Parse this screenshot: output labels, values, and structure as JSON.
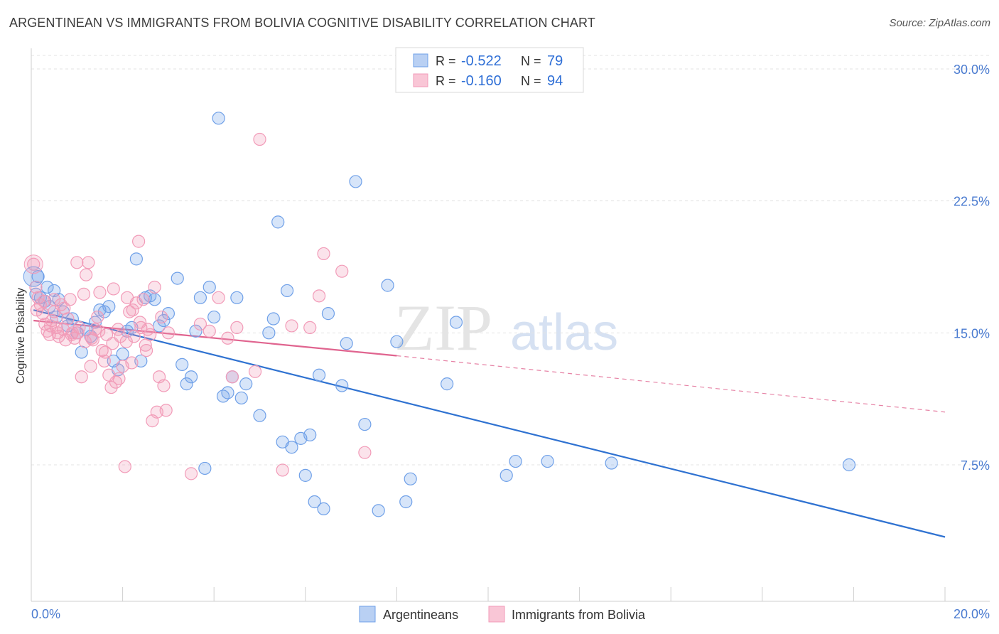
{
  "title": "ARGENTINEAN VS IMMIGRANTS FROM BOLIVIA COGNITIVE DISABILITY CORRELATION CHART",
  "source": "Source: ZipAtlas.com",
  "watermark": {
    "zip": "ZIP",
    "atlas": "atlas"
  },
  "chart_data": {
    "type": "scatter",
    "title": "ARGENTINEAN VS IMMIGRANTS FROM BOLIVIA COGNITIVE DISABILITY CORRELATION CHART",
    "ylabel": "Cognitive Disability",
    "xlabel": "",
    "xlim": [
      0,
      20
    ],
    "ylim": [
      0,
      30.9
    ],
    "x_ticks_labels": [
      "0.0%",
      "20.0%"
    ],
    "y_ticks": [
      7.5,
      15.0,
      22.5,
      30.0
    ],
    "y_ticks_labels": [
      "7.5%",
      "15.0%",
      "22.5%",
      "30.0%"
    ],
    "grid": true,
    "legend": {
      "placement": "top-center",
      "entries": [
        {
          "r_label": "R =",
          "r_value": "-0.522",
          "n_label": "N =",
          "n_value": "79"
        },
        {
          "r_label": "R =",
          "r_value": "-0.160",
          "n_label": "N =",
          "n_value": "94"
        }
      ]
    },
    "series": [
      {
        "name": "Argentineans",
        "color": "#6fa0e8",
        "trend": {
          "x": [
            0.05,
            20.0
          ],
          "y": [
            16.3,
            3.4
          ],
          "color": "#2f72d1"
        },
        "points": [
          [
            0.1,
            17.2
          ],
          [
            0.2,
            17.0
          ],
          [
            0.3,
            16.8
          ],
          [
            0.4,
            16.5
          ],
          [
            0.5,
            17.4
          ],
          [
            0.6,
            16.9
          ],
          [
            0.7,
            16.2
          ],
          [
            0.8,
            15.4
          ],
          [
            0.9,
            15.8
          ],
          [
            1.0,
            15.0
          ],
          [
            1.1,
            13.9
          ],
          [
            1.2,
            15.2
          ],
          [
            1.3,
            14.8
          ],
          [
            1.5,
            16.3
          ],
          [
            1.6,
            16.2
          ],
          [
            1.7,
            16.5
          ],
          [
            1.8,
            13.4
          ],
          [
            1.9,
            12.9
          ],
          [
            2.0,
            13.8
          ],
          [
            2.1,
            15.1
          ],
          [
            2.2,
            15.3
          ],
          [
            2.3,
            19.2
          ],
          [
            2.4,
            13.4
          ],
          [
            2.5,
            17.0
          ],
          [
            2.6,
            17.1
          ],
          [
            2.7,
            16.9
          ],
          [
            2.8,
            15.4
          ],
          [
            2.9,
            15.7
          ],
          [
            3.0,
            16.1
          ],
          [
            3.2,
            18.1
          ],
          [
            3.3,
            13.2
          ],
          [
            3.4,
            12.1
          ],
          [
            3.5,
            12.5
          ],
          [
            3.6,
            15.1
          ],
          [
            3.7,
            17.0
          ],
          [
            3.8,
            7.3
          ],
          [
            3.9,
            17.6
          ],
          [
            4.0,
            15.9
          ],
          [
            4.1,
            27.2
          ],
          [
            4.2,
            11.4
          ],
          [
            4.3,
            11.6
          ],
          [
            4.4,
            12.5
          ],
          [
            4.5,
            17.0
          ],
          [
            4.6,
            11.3
          ],
          [
            4.7,
            12.1
          ],
          [
            5.0,
            10.3
          ],
          [
            5.2,
            15.0
          ],
          [
            5.3,
            15.8
          ],
          [
            5.4,
            21.3
          ],
          [
            5.5,
            8.8
          ],
          [
            5.6,
            17.4
          ],
          [
            5.7,
            8.5
          ],
          [
            5.9,
            9.0
          ],
          [
            6.0,
            6.9
          ],
          [
            6.1,
            9.2
          ],
          [
            6.2,
            5.4
          ],
          [
            6.3,
            12.6
          ],
          [
            6.4,
            5.0
          ],
          [
            6.5,
            16.1
          ],
          [
            6.8,
            12.0
          ],
          [
            6.9,
            14.4
          ],
          [
            7.1,
            23.6
          ],
          [
            7.3,
            9.8
          ],
          [
            7.6,
            4.9
          ],
          [
            7.8,
            17.7
          ],
          [
            8.0,
            14.5
          ],
          [
            8.2,
            5.4
          ],
          [
            8.3,
            6.7
          ],
          [
            9.1,
            12.1
          ],
          [
            9.3,
            15.6
          ],
          [
            10.4,
            6.9
          ],
          [
            10.6,
            7.7
          ],
          [
            11.3,
            7.7
          ],
          [
            12.7,
            7.6
          ],
          [
            17.9,
            7.5
          ],
          [
            0.15,
            18.2
          ],
          [
            0.35,
            17.6
          ],
          [
            0.55,
            15.9
          ],
          [
            1.4,
            15.6
          ]
        ]
      },
      {
        "name": "Immigrants from Bolivia",
        "color": "#f29bb8",
        "trend": {
          "x": [
            0.05,
            8.0
          ],
          "y": [
            15.7,
            13.7
          ],
          "color": "#e0648f"
        },
        "trend_extension": {
          "x": [
            8.0,
            20.0
          ],
          "y": [
            13.7,
            10.5
          ]
        },
        "points": [
          [
            0.05,
            18.9
          ],
          [
            0.1,
            17.6
          ],
          [
            0.15,
            17.0
          ],
          [
            0.2,
            16.6
          ],
          [
            0.25,
            16.1
          ],
          [
            0.3,
            15.5
          ],
          [
            0.35,
            15.1
          ],
          [
            0.4,
            14.9
          ],
          [
            0.45,
            15.7
          ],
          [
            0.5,
            16.2
          ],
          [
            0.55,
            15.3
          ],
          [
            0.6,
            14.8
          ],
          [
            0.65,
            16.6
          ],
          [
            0.7,
            15.2
          ],
          [
            0.75,
            14.6
          ],
          [
            0.8,
            15.8
          ],
          [
            0.85,
            16.9
          ],
          [
            0.9,
            15.0
          ],
          [
            0.95,
            14.7
          ],
          [
            1.0,
            19.0
          ],
          [
            1.05,
            15.3
          ],
          [
            1.1,
            12.5
          ],
          [
            1.15,
            17.2
          ],
          [
            1.2,
            18.3
          ],
          [
            1.25,
            19.0
          ],
          [
            1.3,
            13.1
          ],
          [
            1.35,
            14.6
          ],
          [
            1.4,
            15.2
          ],
          [
            1.45,
            15.9
          ],
          [
            1.5,
            17.3
          ],
          [
            1.55,
            14.0
          ],
          [
            1.6,
            13.4
          ],
          [
            1.65,
            14.9
          ],
          [
            1.7,
            12.6
          ],
          [
            1.75,
            11.9
          ],
          [
            1.8,
            17.5
          ],
          [
            1.85,
            12.2
          ],
          [
            1.9,
            15.2
          ],
          [
            1.95,
            14.8
          ],
          [
            2.0,
            13.1
          ],
          [
            2.05,
            7.4
          ],
          [
            2.1,
            17.0
          ],
          [
            2.15,
            16.2
          ],
          [
            2.2,
            13.3
          ],
          [
            2.25,
            14.8
          ],
          [
            2.3,
            16.7
          ],
          [
            2.35,
            20.2
          ],
          [
            2.4,
            15.3
          ],
          [
            2.45,
            16.9
          ],
          [
            2.5,
            14.3
          ],
          [
            2.55,
            15.2
          ],
          [
            2.6,
            14.9
          ],
          [
            2.65,
            10.0
          ],
          [
            2.7,
            17.6
          ],
          [
            2.75,
            10.5
          ],
          [
            2.8,
            12.5
          ],
          [
            2.85,
            15.9
          ],
          [
            2.9,
            12.0
          ],
          [
            2.95,
            10.6
          ],
          [
            3.0,
            15.0
          ],
          [
            3.5,
            7.0
          ],
          [
            3.7,
            15.5
          ],
          [
            3.9,
            15.1
          ],
          [
            4.1,
            17.0
          ],
          [
            4.3,
            14.7
          ],
          [
            4.4,
            12.5
          ],
          [
            4.5,
            15.3
          ],
          [
            5.0,
            26.0
          ],
          [
            4.9,
            12.8
          ],
          [
            5.5,
            7.2
          ],
          [
            5.7,
            15.4
          ],
          [
            6.1,
            15.3
          ],
          [
            6.3,
            17.1
          ],
          [
            6.4,
            19.5
          ],
          [
            6.8,
            18.5
          ],
          [
            7.3,
            8.2
          ],
          [
            0.12,
            16.3
          ],
          [
            0.28,
            16.8
          ],
          [
            0.42,
            15.4
          ],
          [
            0.58,
            15.0
          ],
          [
            0.72,
            16.4
          ],
          [
            0.88,
            14.9
          ],
          [
            1.02,
            15.0
          ],
          [
            1.18,
            14.5
          ],
          [
            1.32,
            14.7
          ],
          [
            1.48,
            15.1
          ],
          [
            1.62,
            13.9
          ],
          [
            1.78,
            14.4
          ],
          [
            1.92,
            12.4
          ],
          [
            2.08,
            14.5
          ],
          [
            2.22,
            16.3
          ],
          [
            2.38,
            15.6
          ],
          [
            2.52,
            14.0
          ],
          [
            0.5,
            16.9
          ]
        ]
      }
    ]
  },
  "bottom_legend": [
    "Argentineans",
    "Immigrants from Bolivia"
  ]
}
